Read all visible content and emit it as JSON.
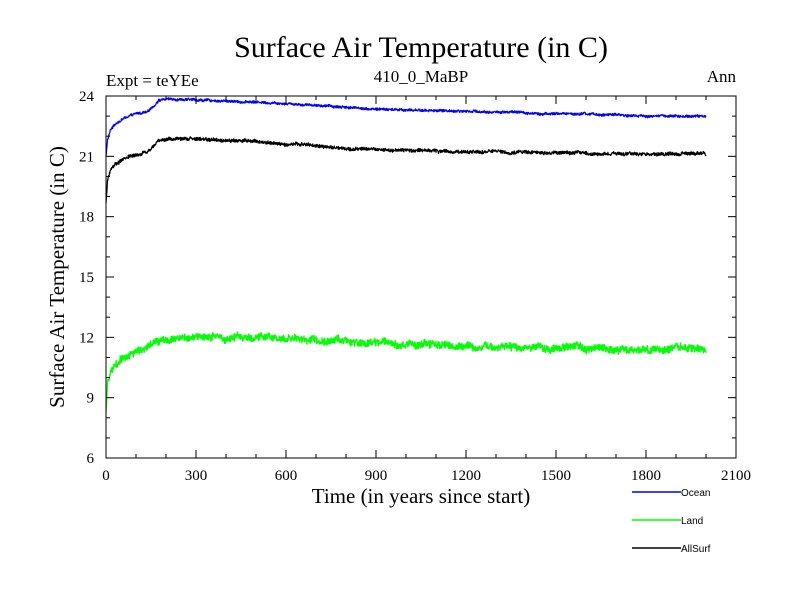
{
  "chart_data": {
    "type": "line",
    "title": "Surface Air Temperature (in C)",
    "subtitle_left": "Expt = teYEe",
    "subtitle_center": "410_0_MaBP",
    "subtitle_right": "Ann",
    "xlabel": "Time (in years since start)",
    "ylabel": "Surface Air Temperature (in C)",
    "xlim": [
      0,
      2100
    ],
    "ylim": [
      6,
      24
    ],
    "xticks": [
      0,
      300,
      600,
      900,
      1200,
      1500,
      1800,
      2100
    ],
    "yticks": [
      6,
      9,
      12,
      15,
      18,
      21,
      24
    ],
    "xtick_labels": [
      "0",
      "300",
      "600",
      "900",
      "1200",
      "1500",
      "1800",
      "2100"
    ],
    "ytick_labels": [
      "6",
      "9",
      "12",
      "15",
      "18",
      "21",
      "24"
    ],
    "legend_position": "bottom-right-outside",
    "series": [
      {
        "name": "Ocean",
        "color": "#0000ff",
        "noise": 0.06,
        "x": [
          0,
          5,
          15,
          30,
          60,
          100,
          140,
          160,
          175,
          200,
          250,
          300,
          400,
          500,
          600,
          700,
          800,
          900,
          1000,
          1200,
          1400,
          1600,
          1800,
          2000
        ],
        "y": [
          21.0,
          21.8,
          22.3,
          22.6,
          22.9,
          23.1,
          23.2,
          23.5,
          23.8,
          23.85,
          23.85,
          23.8,
          23.75,
          23.7,
          23.65,
          23.55,
          23.45,
          23.35,
          23.3,
          23.25,
          23.15,
          23.1,
          23.0,
          23.0
        ]
      },
      {
        "name": "Land",
        "color": "#00ff00",
        "noise": 0.18,
        "x": [
          0,
          5,
          15,
          30,
          60,
          100,
          150,
          200,
          250,
          300,
          400,
          500,
          600,
          700,
          800,
          900,
          1000,
          1200,
          1400,
          1600,
          1800,
          2000
        ],
        "y": [
          8.2,
          9.6,
          10.2,
          10.6,
          11.0,
          11.3,
          11.6,
          11.85,
          11.95,
          12.0,
          12.0,
          12.0,
          11.95,
          11.9,
          11.85,
          11.75,
          11.7,
          11.6,
          11.5,
          11.45,
          11.4,
          11.35
        ]
      },
      {
        "name": "AllSurf",
        "color": "#000000",
        "noise": 0.08,
        "x": [
          0,
          5,
          15,
          30,
          60,
          100,
          140,
          160,
          175,
          200,
          250,
          300,
          400,
          500,
          600,
          700,
          800,
          900,
          1000,
          1200,
          1400,
          1600,
          1800,
          2000
        ],
        "y": [
          18.6,
          19.8,
          20.3,
          20.6,
          20.9,
          21.05,
          21.2,
          21.5,
          21.8,
          21.85,
          21.85,
          21.85,
          21.8,
          21.75,
          21.65,
          21.55,
          21.4,
          21.35,
          21.3,
          21.25,
          21.2,
          21.15,
          21.1,
          21.1
        ]
      }
    ]
  }
}
